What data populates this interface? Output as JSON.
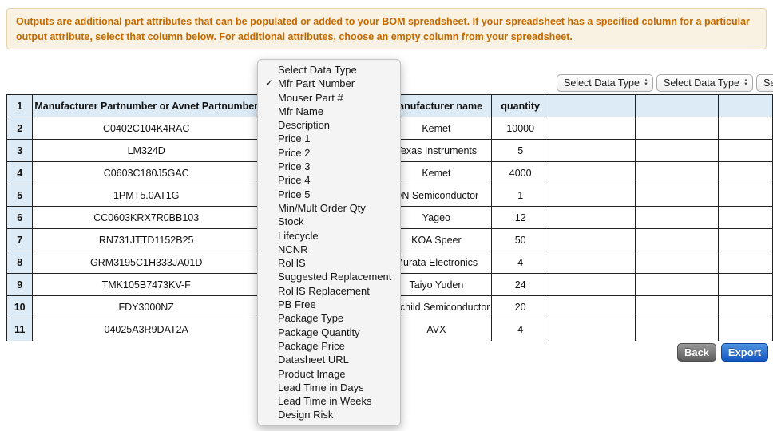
{
  "banner": {
    "text": "Outputs are additional part attributes that can be populated or added to your BOM spreadsheet. If your spreadsheet has a specified column for a particular output attribute, select that column below. For additional attributes, choose an empty column from your spreadsheet."
  },
  "column_selects": [
    {
      "label": "Select Data Type"
    },
    {
      "label": "Select Data Type"
    },
    {
      "label": "Select Data Type"
    }
  ],
  "dropdown_menu": {
    "checked_item": "Mfr Part Number",
    "items": [
      {
        "label": "Select Data Type"
      },
      {
        "label": "Mfr Part Number",
        "checked": true
      },
      {
        "label": "Mouser Part #"
      },
      {
        "label": "Mfr Name"
      },
      {
        "label": "Description"
      },
      {
        "label": "Price 1"
      },
      {
        "label": "Price 2"
      },
      {
        "label": "Price 3"
      },
      {
        "label": "Price 4"
      },
      {
        "label": "Price 5"
      },
      {
        "label": "Min/Mult Order Qty"
      },
      {
        "label": "Stock"
      },
      {
        "label": "Lifecycle"
      },
      {
        "label": "NCNR"
      },
      {
        "label": "RoHS"
      },
      {
        "label": "Suggested Replacement"
      },
      {
        "label": "RoHS Replacement"
      },
      {
        "label": "PB Free"
      },
      {
        "label": "Package Type"
      },
      {
        "label": "Package Quantity"
      },
      {
        "label": "Package Price"
      },
      {
        "label": "Datasheet URL"
      },
      {
        "label": "Product Image"
      },
      {
        "label": "Lead Time in Days"
      },
      {
        "label": "Lead Time in Weeks"
      },
      {
        "label": "Design Risk"
      }
    ]
  },
  "table": {
    "header": {
      "row_number": "1",
      "part_column": "Manufacturer Partnumber or Avnet Partnumber",
      "manufacturer_column": "Manufacturer name",
      "quantity_column": "quantity"
    },
    "rows": [
      {
        "num": "2",
        "part": "C0402C104K4RAC",
        "mfr": "Kemet",
        "qty": "10000"
      },
      {
        "num": "3",
        "part": "LM324D",
        "mfr": "Texas Instruments",
        "qty": "5"
      },
      {
        "num": "4",
        "part": "C0603C180J5GAC",
        "mfr": "Kemet",
        "qty": "4000"
      },
      {
        "num": "5",
        "part": "1PMT5.0AT1G",
        "mfr": "ON Semiconductor",
        "qty": "1"
      },
      {
        "num": "6",
        "part": "CC0603KRX7R0BB103",
        "mfr": "Yageo",
        "qty": "12"
      },
      {
        "num": "7",
        "part": "RN731JTTD1152B25",
        "mfr": "KOA Speer",
        "qty": "50"
      },
      {
        "num": "8",
        "part": "GRM3195C1H333JA01D",
        "mfr": "Murata Electronics",
        "qty": "4"
      },
      {
        "num": "9",
        "part": "TMK105B7473KV-F",
        "mfr": "Taiyo Yuden",
        "qty": "24"
      },
      {
        "num": "10",
        "part": "FDY3000NZ",
        "mfr": "Fairchild Semiconductor",
        "qty": "20"
      },
      {
        "num": "11",
        "part": "04025A3R9DAT2A",
        "mfr": "AVX",
        "qty": "4"
      }
    ]
  },
  "buttons": {
    "back": "Back",
    "export": "Export"
  },
  "icons": {
    "checkmark": "✓",
    "select_arrow_up": "▲",
    "select_arrow_down": "▼"
  },
  "colors": {
    "banner_bg": "#f9f1e1",
    "banner_text": "#c26a00",
    "table_header_bg": "#dcebf6",
    "export_button_blue": "#1356c2",
    "back_button_gray": "#5d5d5d"
  }
}
